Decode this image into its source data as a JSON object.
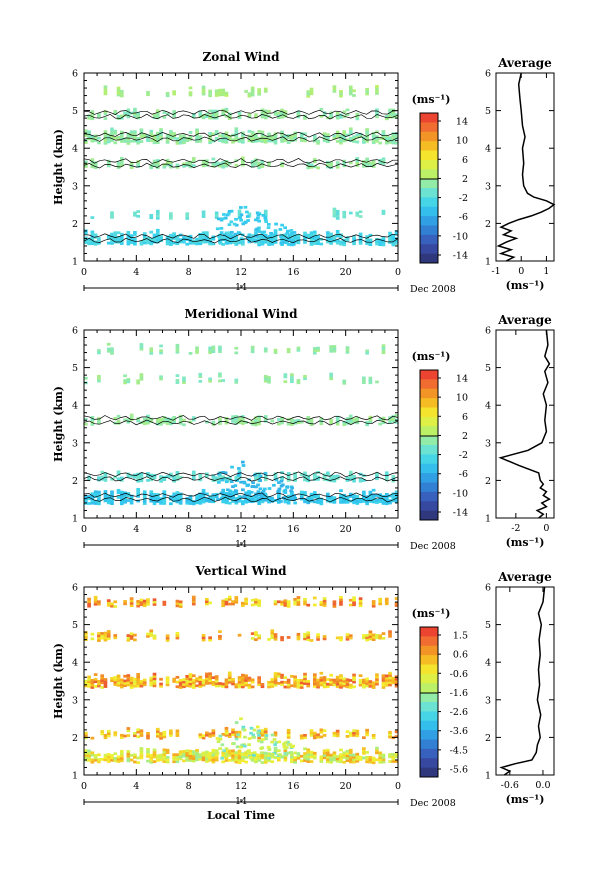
{
  "date_label": "Dec 2008",
  "day_label": "14",
  "x_axis_label": "Local Time",
  "x_ticks": [
    "0",
    "4",
    "8",
    "12",
    "16",
    "20",
    "0"
  ],
  "y_axis_label": "Height (km)",
  "y_ticks": [
    "1",
    "2",
    "3",
    "4",
    "5",
    "6"
  ],
  "avg_title": "Average",
  "unit_label": "(ms⁻¹)",
  "chart_data": [
    {
      "type": "heatmap",
      "title": "Zonal Wind",
      "xlabel": "Local Time",
      "ylabel": "Height (km)",
      "xlim": [
        0,
        24
      ],
      "ylim": [
        1,
        6
      ],
      "colorbar": {
        "label": "(ms⁻¹)",
        "ticks": [
          "14",
          "10",
          "6",
          "2",
          "-2",
          "-6",
          "-10",
          "-14"
        ],
        "range": [
          -16,
          16
        ]
      },
      "layers": [
        {
          "height_km": 5.5,
          "value_ms": 2,
          "coverage": "sparse"
        },
        {
          "height_km": 4.9,
          "value_ms": 1,
          "coverage": "medium"
        },
        {
          "height_km": 4.3,
          "value_ms": 1,
          "coverage": "dense"
        },
        {
          "height_km": 3.6,
          "value_ms": 1,
          "coverage": "medium"
        },
        {
          "height_km": 2.25,
          "value_ms": -1,
          "coverage": "sparse"
        },
        {
          "height_km": 1.6,
          "value_ms": -3,
          "coverage": "dense"
        }
      ],
      "average": {
        "xlabel": "(ms⁻¹)",
        "xlim": [
          -1,
          1.3
        ],
        "xticks": [
          "-1",
          "0",
          "1"
        ],
        "profile": [
          [
            1.0,
            -0.6
          ],
          [
            1.1,
            -0.3
          ],
          [
            1.2,
            -0.8
          ],
          [
            1.3,
            -0.4
          ],
          [
            1.4,
            -0.9
          ],
          [
            1.5,
            -0.6
          ],
          [
            1.6,
            -0.2
          ],
          [
            1.7,
            -0.7
          ],
          [
            1.8,
            -0.4
          ],
          [
            1.9,
            -0.8
          ],
          [
            2.0,
            -0.5
          ],
          [
            2.1,
            -0.1
          ],
          [
            2.2,
            0.4
          ],
          [
            2.3,
            0.8
          ],
          [
            2.4,
            1.1
          ],
          [
            2.5,
            1.3
          ],
          [
            2.6,
            1.0
          ],
          [
            2.7,
            0.5
          ],
          [
            2.8,
            0.25
          ],
          [
            3.0,
            0.1
          ],
          [
            3.3,
            0.05
          ],
          [
            3.6,
            0.1
          ],
          [
            4.0,
            0.05
          ],
          [
            4.3,
            0.15
          ],
          [
            4.6,
            0.05
          ],
          [
            5.0,
            0.0
          ],
          [
            5.3,
            -0.05
          ],
          [
            5.7,
            -0.1
          ],
          [
            6.0,
            0.0
          ]
        ]
      }
    },
    {
      "type": "heatmap",
      "title": "Meridional Wind",
      "xlabel": "Local Time",
      "ylabel": "Height (km)",
      "xlim": [
        0,
        24
      ],
      "ylim": [
        1,
        6
      ],
      "colorbar": {
        "label": "(ms⁻¹)",
        "ticks": [
          "14",
          "10",
          "6",
          "2",
          "-2",
          "-6",
          "-10",
          "-14"
        ],
        "range": [
          -16,
          16
        ]
      },
      "layers": [
        {
          "height_km": 5.5,
          "value_ms": 1,
          "coverage": "sparse"
        },
        {
          "height_km": 4.7,
          "value_ms": 1,
          "coverage": "sparse"
        },
        {
          "height_km": 3.6,
          "value_ms": 1,
          "coverage": "medium"
        },
        {
          "height_km": 2.1,
          "value_ms": -1,
          "coverage": "medium"
        },
        {
          "height_km": 1.55,
          "value_ms": -4,
          "coverage": "dense"
        }
      ],
      "average": {
        "xlabel": "(ms⁻¹)",
        "xlim": [
          -3.3,
          0.5
        ],
        "xticks": [
          "-2",
          "0"
        ],
        "profile": [
          [
            1.0,
            -0.5
          ],
          [
            1.1,
            -0.2
          ],
          [
            1.2,
            -0.6
          ],
          [
            1.3,
            0.0
          ],
          [
            1.4,
            -0.3
          ],
          [
            1.5,
            0.2
          ],
          [
            1.6,
            -0.2
          ],
          [
            1.7,
            0.0
          ],
          [
            1.8,
            -0.4
          ],
          [
            1.9,
            -0.2
          ],
          [
            2.0,
            -0.4
          ],
          [
            2.2,
            -0.5
          ],
          [
            2.4,
            -1.8
          ],
          [
            2.6,
            -3.0
          ],
          [
            2.8,
            -1.2
          ],
          [
            3.0,
            -0.3
          ],
          [
            3.3,
            0.0
          ],
          [
            3.6,
            -0.1
          ],
          [
            4.0,
            0.0
          ],
          [
            4.3,
            -0.2
          ],
          [
            4.6,
            0.1
          ],
          [
            4.9,
            -0.1
          ],
          [
            5.1,
            0.2
          ],
          [
            5.3,
            -0.1
          ],
          [
            5.6,
            0.1
          ],
          [
            6.0,
            0.0
          ]
        ]
      }
    },
    {
      "type": "heatmap",
      "title": "Vertical Wind",
      "xlabel": "Local Time",
      "ylabel": "Height (km)",
      "xlim": [
        0,
        24
      ],
      "ylim": [
        1,
        6
      ],
      "colorbar": {
        "label": "(ms⁻¹)",
        "ticks": [
          "1.5",
          "0.6",
          "-0.6",
          "-1.6",
          "-2.6",
          "-3.6",
          "-4.5",
          "-5.6"
        ],
        "range": [
          -6.0,
          2.0
        ]
      },
      "layers": [
        {
          "height_km": 5.6,
          "value_ms": 0.4,
          "coverage": "medium"
        },
        {
          "height_km": 4.7,
          "value_ms": 0.3,
          "coverage": "medium"
        },
        {
          "height_km": 3.5,
          "value_ms": 0.4,
          "coverage": "dense"
        },
        {
          "height_km": 2.1,
          "value_ms": 0.3,
          "coverage": "medium"
        },
        {
          "height_km": 1.5,
          "value_ms": -0.5,
          "coverage": "dense"
        }
      ],
      "average": {
        "xlabel": "(ms⁻¹)",
        "xlim": [
          -0.85,
          0.2
        ],
        "xticks": [
          "-0.6",
          "0.0"
        ],
        "profile": [
          [
            1.0,
            -0.7
          ],
          [
            1.1,
            -0.6
          ],
          [
            1.2,
            -0.75
          ],
          [
            1.3,
            -0.5
          ],
          [
            1.4,
            -0.2
          ],
          [
            1.6,
            -0.12
          ],
          [
            1.8,
            -0.1
          ],
          [
            2.0,
            -0.05
          ],
          [
            2.3,
            -0.08
          ],
          [
            2.6,
            -0.04
          ],
          [
            3.0,
            -0.1
          ],
          [
            3.4,
            -0.06
          ],
          [
            3.8,
            -0.08
          ],
          [
            4.2,
            -0.05
          ],
          [
            4.6,
            -0.07
          ],
          [
            5.0,
            -0.03
          ],
          [
            5.3,
            -0.08
          ],
          [
            5.6,
            0.0
          ],
          [
            6.0,
            0.03
          ]
        ]
      }
    }
  ]
}
